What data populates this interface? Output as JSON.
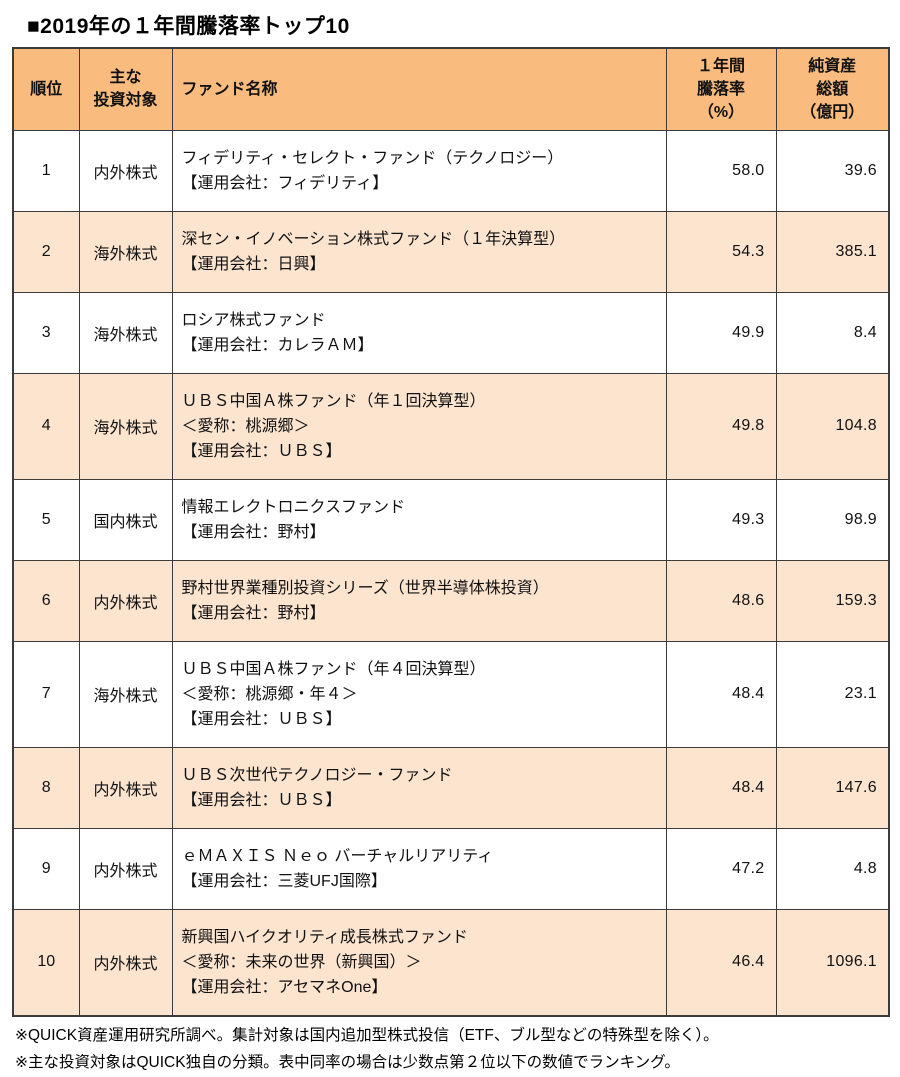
{
  "title": "■2019年の１年間騰落率トップ10",
  "colors": {
    "header_bg": "#f9bc7e",
    "stripe_bg": "#fce4cf",
    "border": "#3b3b3b"
  },
  "table": {
    "headers": {
      "rank": "順位",
      "target": "主な\n投資対象",
      "fund": "ファンド名称",
      "return": "１年間\n騰落率\n（%）",
      "assets": "純資産\n総額\n（億円）"
    },
    "rows": [
      {
        "rank": "1",
        "target": "内外株式",
        "fund_lines": [
          "フィデリティ・セレクト・ファンド（テクノロジー）",
          "【運用会社：フィデリティ】"
        ],
        "return": "58.0",
        "assets": "39.6"
      },
      {
        "rank": "2",
        "target": "海外株式",
        "fund_lines": [
          "深セン・イノベーション株式ファンド（１年決算型）",
          "【運用会社：日興】"
        ],
        "return": "54.3",
        "assets": "385.1"
      },
      {
        "rank": "3",
        "target": "海外株式",
        "fund_lines": [
          "ロシア株式ファンド",
          "【運用会社：カレラＡＭ】"
        ],
        "return": "49.9",
        "assets": "8.4"
      },
      {
        "rank": "4",
        "target": "海外株式",
        "fund_lines": [
          "ＵＢＳ中国Ａ株ファンド（年１回決算型）",
          "＜愛称：桃源郷＞",
          "【運用会社：ＵＢＳ】"
        ],
        "return": "49.8",
        "assets": "104.8"
      },
      {
        "rank": "5",
        "target": "国内株式",
        "fund_lines": [
          "情報エレクトロニクスファンド",
          "【運用会社：野村】"
        ],
        "return": "49.3",
        "assets": "98.9"
      },
      {
        "rank": "6",
        "target": "内外株式",
        "fund_lines": [
          "野村世界業種別投資シリーズ（世界半導体株投資）",
          "【運用会社：野村】"
        ],
        "return": "48.6",
        "assets": "159.3"
      },
      {
        "rank": "7",
        "target": "海外株式",
        "fund_lines": [
          "ＵＢＳ中国Ａ株ファンド（年４回決算型）",
          "＜愛称：桃源郷・年４＞",
          "【運用会社：ＵＢＳ】"
        ],
        "return": "48.4",
        "assets": "23.1"
      },
      {
        "rank": "8",
        "target": "内外株式",
        "fund_lines": [
          "ＵＢＳ次世代テクノロジー・ファンド",
          "【運用会社：ＵＢＳ】"
        ],
        "return": "48.4",
        "assets": "147.6"
      },
      {
        "rank": "9",
        "target": "内外株式",
        "fund_lines": [
          "ｅＭＡＸＩＳ Ｎｅｏ バーチャルリアリティ",
          "【運用会社：三菱UFJ国際】"
        ],
        "return": "47.2",
        "assets": "4.8"
      },
      {
        "rank": "10",
        "target": "内外株式",
        "fund_lines": [
          "新興国ハイクオリティ成長株式ファンド",
          "＜愛称：未来の世界（新興国）＞",
          "【運用会社：アセマネOne】"
        ],
        "return": "46.4",
        "assets": "1096.1"
      }
    ]
  },
  "notes": [
    "※QUICK資産運用研究所調べ。集計対象は国内追加型株式投信（ETF、ブル型などの特殊型を除く）。",
    "※主な投資対象はQUICK独自の分類。表中同率の場合は少数点第２位以下の数値でランキング。"
  ]
}
